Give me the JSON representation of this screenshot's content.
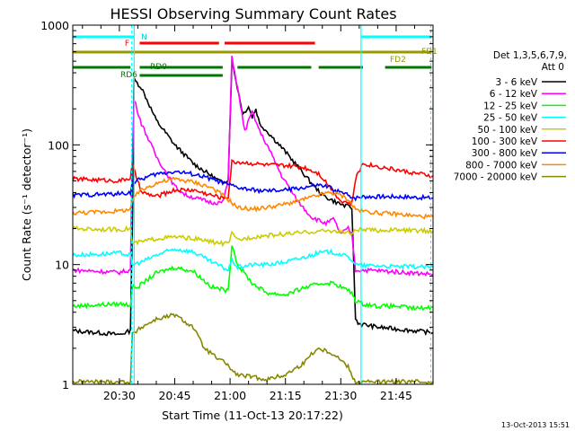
{
  "chart_data": {
    "type": "line",
    "title": "HESSI Observing Summary Count Rates",
    "xlabel": "Start Time (11-Oct-13 20:17:22)",
    "ylabel": "Count Rate (s⁻¹ detector⁻¹)",
    "y_scale": "log",
    "ylim": [
      1,
      1000
    ],
    "xlim_minutes": [
      17.37,
      115.0
    ],
    "x_ticks": [
      {
        "label": "20:30",
        "min": 30
      },
      {
        "label": "20:45",
        "min": 45
      },
      {
        "label": "21:00",
        "min": 60
      },
      {
        "label": "21:15",
        "min": 75
      },
      {
        "label": "21:30",
        "min": 90
      },
      {
        "label": "21:45",
        "min": 105
      }
    ],
    "y_ticks": [
      "1",
      "10",
      "100",
      "1000"
    ],
    "legend_header": [
      "Det 1,3,5,6,7,9,",
      "Att 0"
    ],
    "legend_placement": "right",
    "series": [
      {
        "name": "3 - 6 keV",
        "color": "#000000",
        "x": [
          17.4,
          24,
          30,
          31.5,
          33,
          33.5,
          34,
          36,
          40,
          45,
          50,
          55,
          58,
          59.5,
          60.5,
          62,
          63.5,
          65,
          66,
          67,
          68,
          70,
          74,
          78,
          82,
          85,
          88,
          91,
          93,
          94,
          95,
          100,
          105,
          110,
          114.9
        ],
        "y": [
          2.8,
          2.7,
          2.6,
          2.7,
          2.8,
          20,
          350,
          300,
          160,
          100,
          70,
          55,
          48,
          52,
          500,
          300,
          180,
          210,
          170,
          200,
          150,
          130,
          95,
          68,
          48,
          38,
          34,
          31,
          30,
          3.5,
          3.2,
          3.0,
          2.9,
          2.8,
          2.7
        ]
      },
      {
        "name": "6 - 12 keV",
        "color": "#ff00ff",
        "x": [
          17.4,
          24,
          30,
          33,
          33.5,
          34,
          36,
          40,
          45,
          48,
          52,
          55,
          58,
          59.5,
          60.5,
          62,
          64,
          66,
          68,
          70,
          74,
          78,
          82,
          86,
          88,
          90,
          92,
          93,
          94,
          96,
          100,
          105,
          110,
          114.9
        ],
        "y": [
          9,
          8.8,
          8.6,
          9,
          80,
          240,
          150,
          80,
          45,
          38,
          35,
          33,
          33,
          50,
          550,
          300,
          130,
          190,
          130,
          100,
          55,
          35,
          25,
          22,
          24,
          18,
          20,
          18,
          9,
          9,
          8.9,
          8.7,
          8.5,
          8.3
        ]
      },
      {
        "name": "12 - 25 keV",
        "color": "#00ff00",
        "x": [
          17.4,
          24,
          30,
          33,
          33.5,
          35,
          40,
          45,
          50,
          55,
          58,
          59.5,
          60.5,
          62,
          66,
          70,
          75,
          80,
          85,
          88,
          91,
          93,
          94,
          96,
          100,
          105,
          110,
          114.9
        ],
        "y": [
          4.5,
          4.6,
          4.7,
          4.6,
          6.5,
          6.5,
          8.5,
          9.5,
          8.8,
          6.5,
          6.2,
          6,
          15,
          10,
          7,
          5.8,
          5.6,
          6.4,
          7.0,
          7.0,
          6.3,
          5.8,
          5.0,
          4.7,
          4.5,
          4.5,
          4.3,
          4.4
        ]
      },
      {
        "name": "25 - 50 keV",
        "color": "#00ffff",
        "x": [
          17.4,
          24,
          30,
          33,
          33.5,
          36,
          40,
          45,
          50,
          55,
          58,
          59.5,
          60.5,
          62,
          66,
          70,
          75,
          80,
          84,
          87,
          90,
          92,
          93,
          94,
          96,
          100,
          105,
          110,
          114.9
        ],
        "y": [
          12,
          12.2,
          12.5,
          12,
          10,
          10.5,
          12,
          13.5,
          12.8,
          10.5,
          9.5,
          9,
          11,
          9.5,
          10,
          10,
          10.5,
          11.5,
          12.5,
          12.8,
          12.2,
          11.5,
          11,
          10,
          9.8,
          9.8,
          9.6,
          9.6,
          9.5
        ]
      },
      {
        "name": "50 - 100 keV",
        "color": "#cccc00",
        "x": [
          17.4,
          24,
          30,
          33,
          33.5,
          36,
          40,
          45,
          50,
          55,
          58,
          59.5,
          60.5,
          62,
          66,
          70,
          75,
          80,
          84,
          87,
          90,
          92,
          93,
          94,
          96,
          100,
          105,
          110,
          114.9
        ],
        "y": [
          20,
          19.8,
          19.6,
          20,
          15,
          15.5,
          16.5,
          17,
          16.5,
          15.5,
          15,
          15,
          18,
          16,
          17,
          17.5,
          18,
          18.5,
          19,
          19.2,
          18.8,
          18.5,
          18,
          19.5,
          19.5,
          19.3,
          19.5,
          19.2,
          19
        ]
      },
      {
        "name": "100 - 300 keV",
        "color": "#ff0000",
        "x": [
          17.4,
          24,
          30,
          33,
          33.5,
          36,
          40,
          45,
          50,
          55,
          58,
          59.5,
          60.5,
          62,
          66,
          70,
          75,
          80,
          84,
          87,
          90,
          92,
          93,
          94,
          96,
          100,
          105,
          110,
          114.9
        ],
        "y": [
          52,
          51,
          50,
          53,
          68,
          40,
          37,
          42,
          42,
          38,
          36,
          37,
          72,
          72,
          70,
          68,
          67,
          65,
          58,
          45,
          34,
          33,
          32,
          52,
          70,
          66,
          62,
          58,
          55
        ]
      },
      {
        "name": "300 - 800 keV",
        "color": "#0000ff",
        "x": [
          17.4,
          24,
          30,
          33,
          33.5,
          36,
          40,
          45,
          50,
          55,
          58,
          60,
          62,
          66,
          70,
          75,
          80,
          84,
          87,
          90,
          92,
          93,
          94,
          96,
          100,
          105,
          110,
          114.9
        ],
        "y": [
          38,
          38.5,
          39,
          40,
          48,
          52,
          57,
          60,
          57,
          52,
          48,
          46,
          44,
          42,
          41,
          42,
          44,
          46,
          44,
          40,
          38,
          37,
          36,
          37,
          37,
          37,
          36.5,
          36
        ]
      },
      {
        "name": "800 - 7000 keV",
        "color": "#ff8800",
        "x": [
          17.4,
          24,
          30,
          33,
          34,
          36,
          40,
          45,
          50,
          55,
          58,
          60,
          62,
          66,
          70,
          75,
          80,
          84,
          87,
          90,
          92,
          93,
          94,
          96,
          100,
          105,
          110,
          114.9
        ],
        "y": [
          27,
          27.5,
          28,
          29,
          37,
          42,
          48,
          52,
          49,
          44,
          38,
          34,
          30,
          29,
          30,
          32,
          35,
          38,
          40,
          38,
          35,
          32,
          29,
          28,
          27,
          26.5,
          25.5,
          25
        ]
      },
      {
        "name": "7000 - 20000 keV",
        "color": "#888800",
        "x": [
          17.4,
          24,
          30,
          33,
          33.5,
          36,
          40,
          45,
          50,
          53,
          55,
          57,
          59,
          60.5,
          62,
          66,
          70,
          75,
          80,
          82,
          84,
          86,
          88,
          90,
          92,
          93,
          94,
          96,
          100,
          105,
          110,
          114.9
        ],
        "y": [
          1.05,
          1.05,
          1.05,
          1.05,
          2.6,
          3.0,
          3.5,
          3.8,
          3.0,
          2.0,
          1.8,
          1.6,
          1.5,
          1.3,
          1.2,
          1.15,
          1.1,
          1.2,
          1.5,
          1.8,
          2.0,
          1.9,
          1.8,
          1.6,
          1.4,
          1.2,
          1.05,
          1.05,
          1.05,
          1.05,
          1.05,
          1.05
        ]
      }
    ],
    "attenuator_bars": [
      {
        "label": "N",
        "color": "#00ffff",
        "segments": [
          [
            17.4,
            34
          ],
          [
            95.5,
            114.6
          ]
        ]
      },
      {
        "label": "F",
        "color": "#ff0000",
        "segments": [
          [
            35.5,
            57
          ],
          [
            58.5,
            83
          ]
        ]
      },
      {
        "label": "FD1",
        "color": "#999900",
        "segments": [
          [
            17.4,
            114.6
          ]
        ]
      },
      {
        "label": "FD2",
        "color": "#999900",
        "segments": [
          [
            17.4,
            114.6
          ]
        ]
      },
      {
        "label": "RD0",
        "color": "#007700",
        "segments": [
          [
            17.4,
            33
          ],
          [
            35.5,
            58
          ],
          [
            62,
            82
          ],
          [
            84,
            96
          ],
          [
            102,
            114.6
          ]
        ]
      },
      {
        "label": "RD6",
        "color": "#007700",
        "segments": [
          [
            35.5,
            58
          ]
        ]
      }
    ],
    "vlines_cyan": [
      34,
      95.5
    ],
    "vlines_dashed": [
      33.3,
      114.4
    ],
    "grid": false
  },
  "footer_timestamp": "13-Oct-2013 15:51"
}
